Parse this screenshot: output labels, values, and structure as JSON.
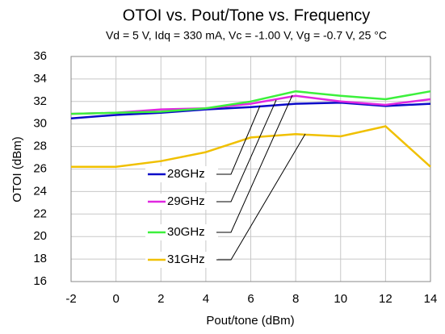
{
  "chart_data": {
    "type": "line",
    "title": "OTOI vs. Pout/Tone vs. Frequency",
    "subtitle": "Vd = 5 V, Idq = 330 mA, Vc = -1.00 V, Vg = -0.7 V, 25 °C",
    "x_label": "Pout/tone (dBm)",
    "y_label": "OTOI  (dBm)",
    "x": [
      -2,
      0,
      2,
      4,
      6,
      8,
      10,
      12,
      14
    ],
    "series": [
      {
        "name": "28GHz",
        "color": "#0a0ac8",
        "values": [
          30.5,
          30.8,
          31.0,
          31.3,
          31.5,
          31.8,
          31.9,
          31.6,
          31.8
        ]
      },
      {
        "name": "29GHz",
        "color": "#e028e0",
        "values": [
          30.9,
          31.0,
          31.3,
          31.4,
          31.8,
          32.5,
          32.0,
          31.7,
          32.2
        ]
      },
      {
        "name": "30GHz",
        "color": "#3cf03c",
        "values": [
          30.9,
          31.0,
          31.1,
          31.4,
          32.0,
          32.9,
          32.5,
          32.2,
          32.9
        ]
      },
      {
        "name": "31GHz",
        "color": "#f0c000",
        "values": [
          26.2,
          26.2,
          26.7,
          27.5,
          28.8,
          29.1,
          28.9,
          29.8,
          26.2
        ]
      }
    ],
    "xlim": [
      -2,
      14
    ],
    "xticks": [
      -2,
      0,
      2,
      4,
      6,
      8,
      10,
      12,
      14
    ],
    "ylim": [
      16,
      36
    ],
    "yticks": [
      16,
      18,
      20,
      22,
      24,
      26,
      28,
      30,
      32,
      34,
      36
    ],
    "grid": true
  }
}
